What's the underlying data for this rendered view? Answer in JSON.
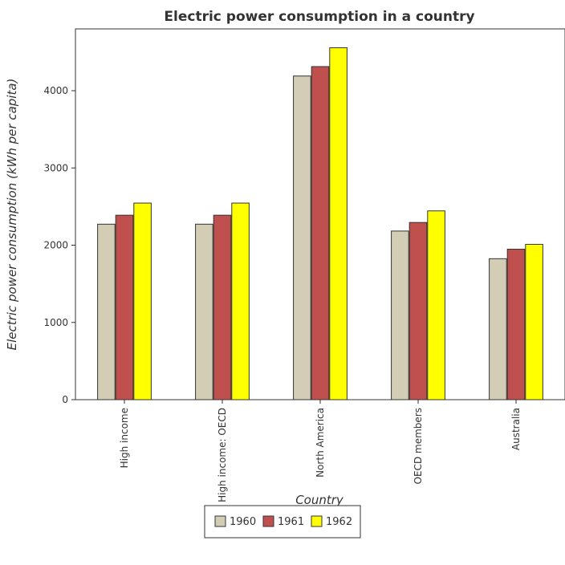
{
  "chart_data": {
    "type": "bar",
    "title": "Electric power consumption in a country",
    "xlabel": "Country",
    "ylabel": "Electric power consumption (kWh per capita)",
    "categories": [
      "High income",
      "High income: OECD",
      "North America",
      "OECD members",
      "Australia"
    ],
    "series": [
      {
        "name": "1960",
        "color": "#d3cdb5",
        "values": [
          2272,
          2272,
          4190,
          2183,
          1825
        ]
      },
      {
        "name": "1961",
        "color": "#c0504d",
        "values": [
          2388,
          2388,
          4312,
          2294,
          1948
        ]
      },
      {
        "name": "1962",
        "color": "#ffff00",
        "values": [
          2545,
          2545,
          4556,
          2444,
          2011
        ]
      }
    ],
    "ylim": [
      0,
      4800
    ],
    "yticks": [
      0,
      1000,
      2000,
      3000,
      4000
    ],
    "grid": false,
    "legend": "bottom-center"
  }
}
